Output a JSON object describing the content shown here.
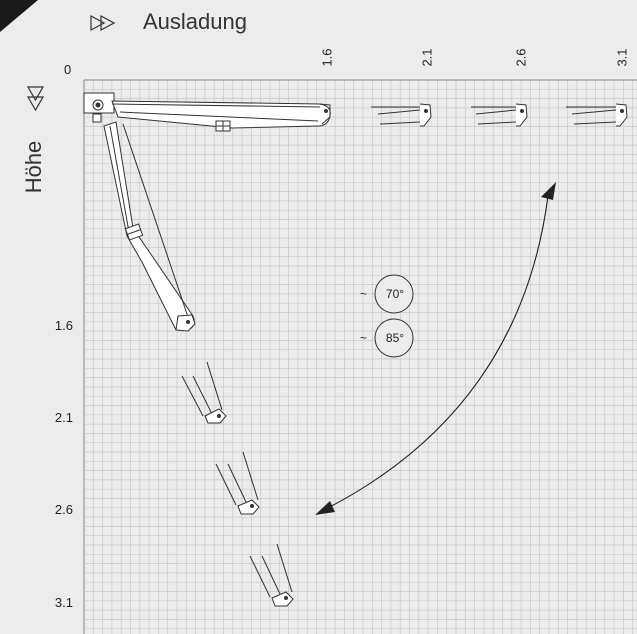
{
  "header": {
    "x_label": "Ausladung",
    "y_label": "Höhe",
    "origin": "0"
  },
  "ticks": {
    "x": [
      "1.6",
      "2.1",
      "2.6",
      "3.1"
    ],
    "y": [
      "1.6",
      "2.1",
      "2.6",
      "3.1"
    ]
  },
  "angles": {
    "a1": "70°",
    "a2": "85°",
    "approx": "~"
  },
  "colors": {
    "background": "#ececec",
    "grid": "#c8c8c8",
    "grid_axis": "#9a9a9a",
    "ink": "#333333"
  },
  "icons": {
    "x_arrow": "double-right-arrow-icon",
    "y_arrow": "double-down-arrow-icon"
  }
}
